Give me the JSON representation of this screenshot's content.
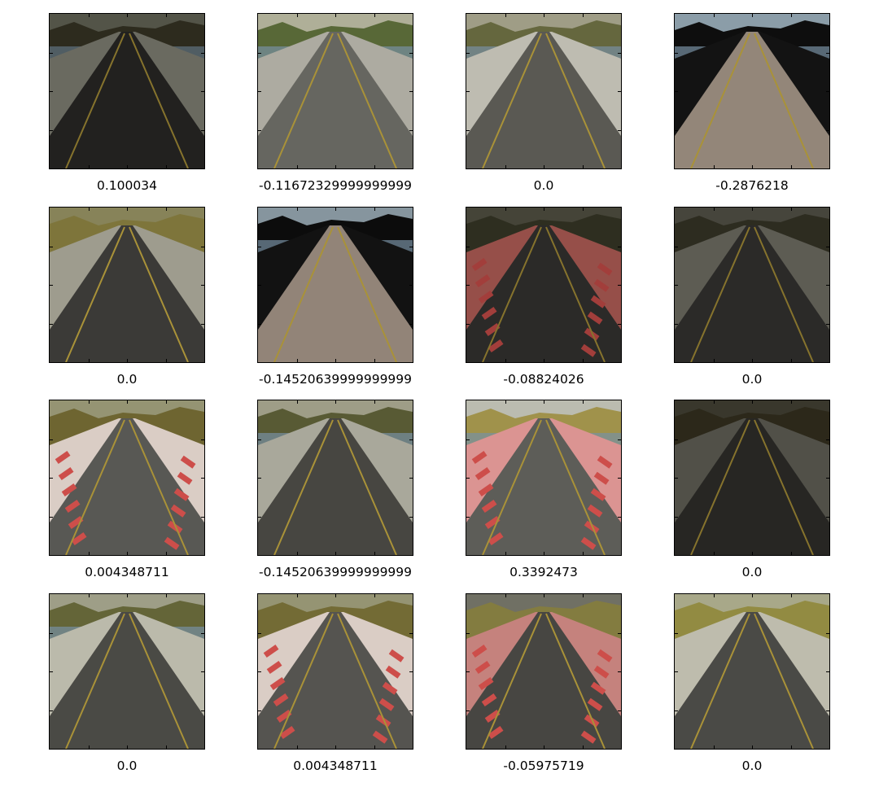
{
  "panels": [
    {
      "label": "0.100034",
      "scene": {
        "sky": "#6f7061",
        "grass": "#3d3a28",
        "road": "#2e2d2a",
        "edge": "#8e8e80",
        "curb": false,
        "water": true,
        "dark": true
      }
    },
    {
      "label": "-0.11672329999999999",
      "scene": {
        "sky": "#b9b9a1",
        "grass": "#5d6e3a",
        "road": "#6c6c66",
        "edge": "#b7b5aa",
        "curb": false,
        "water": true,
        "dark": false
      }
    },
    {
      "label": "0.0",
      "scene": {
        "sky": "#a8a68e",
        "grass": "#6b6d42",
        "road": "#5f5e58",
        "edge": "#c9c7bb",
        "curb": false,
        "water": true,
        "dark": false
      }
    },
    {
      "label": "-0.2876218",
      "scene": {
        "sky": "#93a6b1",
        "grass": "#0f0f0f",
        "road": "#9b8e80",
        "edge": "#151515",
        "curb": false,
        "water": true,
        "dark": false
      }
    },
    {
      "label": "0.0",
      "scene": {
        "sky": "#8f8b5e",
        "grass": "#857c3f",
        "road": "#3f3e3a",
        "edge": "#a7a596",
        "curb": false,
        "water": false,
        "dark": false
      }
    },
    {
      "label": "-0.14520639999999999",
      "scene": {
        "sky": "#8e9ea7",
        "grass": "#0d0d0d",
        "road": "#9a8c7f",
        "edge": "#141414",
        "curb": false,
        "water": true,
        "dark": false
      }
    },
    {
      "label": "-0.08824026",
      "scene": {
        "sky": "#5c5b4b",
        "grass": "#3e3e2b",
        "road": "#3a3936",
        "edge": "#c96a62",
        "curb": true,
        "water": false,
        "dark": true
      }
    },
    {
      "label": "0.0",
      "scene": {
        "sky": "#5e5c50",
        "grass": "#3c3b2b",
        "road": "#3a3936",
        "edge": "#7d7b6f",
        "curb": false,
        "water": false,
        "dark": true
      }
    },
    {
      "label": "0.004348711",
      "scene": {
        "sky": "#9d9c7a",
        "grass": "#746b34",
        "road": "#5d5d59",
        "edge": "#e6d8d0",
        "curb": true,
        "water": false,
        "dark": false
      }
    },
    {
      "label": "-0.14520639999999999",
      "scene": {
        "sky": "#a7a68f",
        "grass": "#5d5f37",
        "road": "#4b4a45",
        "edge": "#b3b2a4",
        "curb": false,
        "water": true,
        "dark": false
      }
    },
    {
      "label": "0.3392473",
      "scene": {
        "sky": "#c6c7ba",
        "grass": "#a99a50",
        "road": "#62625d",
        "edge": "#e79c9a",
        "curb": true,
        "water": true,
        "dark": false
      }
    },
    {
      "label": "0.0",
      "scene": {
        "sky": "#4d4a3b",
        "grass": "#3b3623",
        "road": "#34332f",
        "edge": "#6c6b60",
        "curb": false,
        "water": false,
        "dark": true
      }
    },
    {
      "label": "0.0",
      "scene": {
        "sky": "#a7a78f",
        "grass": "#6a6b3c",
        "road": "#4f4e49",
        "edge": "#c6c4b5",
        "curb": false,
        "water": true,
        "dark": false
      }
    },
    {
      "label": "0.004348711",
      "scene": {
        "sky": "#9d9c7a",
        "grass": "#7a7138",
        "road": "#5a5955",
        "edge": "#e6d8d0",
        "curb": true,
        "water": false,
        "dark": false
      }
    },
    {
      "label": "-0.05975719",
      "scene": {
        "sky": "#77766a",
        "grass": "#8b8344",
        "road": "#4b4a46",
        "edge": "#d08a84",
        "curb": true,
        "water": false,
        "dark": false
      }
    },
    {
      "label": "0.0",
      "scene": {
        "sky": "#b2b291",
        "grass": "#9a9346",
        "road": "#4f4e4a",
        "edge": "#c9c7b7",
        "curb": false,
        "water": false,
        "dark": false
      }
    }
  ]
}
